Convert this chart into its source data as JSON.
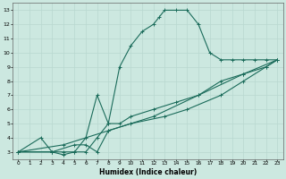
{
  "xlabel": "Humidex (Indice chaleur)",
  "ylabel": "",
  "bg_color": "#cce8e0",
  "grid_color": "#b8d8d0",
  "line_color": "#1a6b5a",
  "xlim": [
    -0.5,
    23.5
  ],
  "ylim": [
    2.5,
    13.5
  ],
  "xticks": [
    0,
    1,
    2,
    3,
    4,
    5,
    6,
    7,
    8,
    9,
    10,
    11,
    12,
    13,
    14,
    15,
    16,
    17,
    18,
    19,
    20,
    21,
    22,
    23
  ],
  "yticks": [
    3,
    4,
    5,
    6,
    7,
    8,
    9,
    10,
    11,
    12,
    13
  ],
  "series": [
    [
      [
        0,
        3
      ],
      [
        2,
        4
      ],
      [
        3,
        3
      ],
      [
        4,
        2.8
      ],
      [
        5,
        3
      ],
      [
        6,
        3
      ],
      [
        7,
        4
      ],
      [
        8,
        5
      ],
      [
        9,
        9
      ],
      [
        10,
        10.5
      ],
      [
        11,
        11.5
      ],
      [
        12,
        12
      ],
      [
        12.5,
        12.5
      ],
      [
        13,
        13
      ],
      [
        14,
        13
      ],
      [
        15,
        13
      ],
      [
        16,
        12
      ],
      [
        17,
        10
      ],
      [
        18,
        9.5
      ],
      [
        19,
        9.5
      ],
      [
        20,
        9.5
      ],
      [
        21,
        9.5
      ],
      [
        22,
        9.5
      ],
      [
        23,
        9.5
      ]
    ],
    [
      [
        0,
        3
      ],
      [
        3,
        3
      ],
      [
        4,
        3
      ],
      [
        5,
        3
      ],
      [
        6,
        4
      ],
      [
        7,
        7
      ],
      [
        8,
        5
      ],
      [
        9,
        5
      ],
      [
        10,
        5.5
      ],
      [
        12,
        6
      ],
      [
        14,
        6.5
      ],
      [
        16,
        7
      ],
      [
        18,
        8
      ],
      [
        20,
        8.5
      ],
      [
        22,
        9
      ],
      [
        23,
        9.5
      ]
    ],
    [
      [
        0,
        3
      ],
      [
        3,
        3
      ],
      [
        5,
        3.5
      ],
      [
        6,
        3.5
      ],
      [
        7,
        3
      ],
      [
        8,
        4.5
      ],
      [
        10,
        5
      ],
      [
        13,
        5.5
      ],
      [
        15,
        6
      ],
      [
        18,
        7
      ],
      [
        20,
        8
      ],
      [
        22,
        9
      ],
      [
        23,
        9.5
      ]
    ],
    [
      [
        0,
        3
      ],
      [
        4,
        3.5
      ],
      [
        8,
        4.5
      ],
      [
        12,
        5.5
      ],
      [
        16,
        7
      ],
      [
        20,
        8.5
      ],
      [
        23,
        9.5
      ]
    ]
  ]
}
